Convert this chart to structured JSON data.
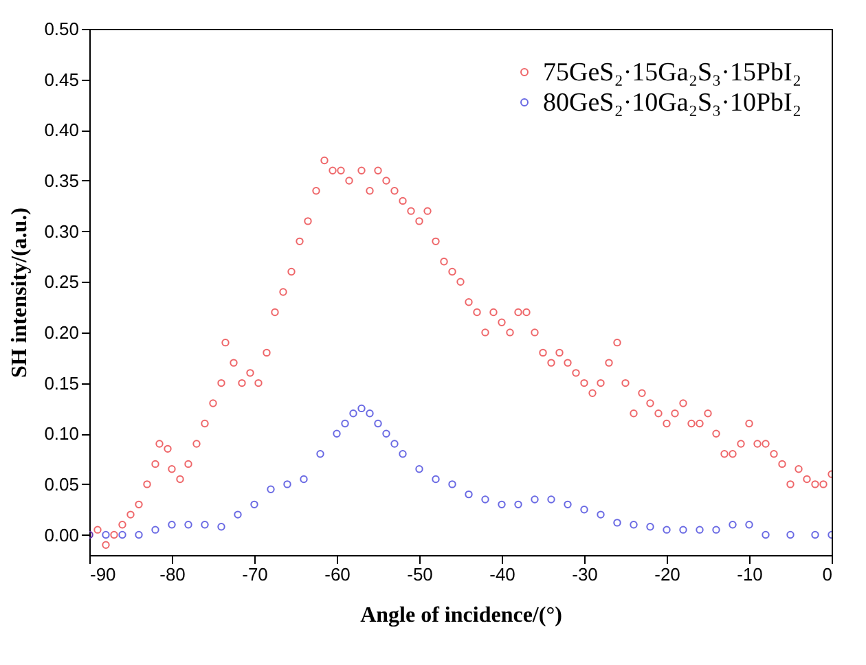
{
  "chart_data": {
    "type": "scatter",
    "xlabel": "Angle of incidence/(°)",
    "ylabel": "SH intensity/(a.u.)",
    "xlim": [
      -90,
      0
    ],
    "xticks": [
      -90,
      -80,
      -70,
      -60,
      -50,
      -40,
      -30,
      -20,
      -10,
      0
    ],
    "ylim": [
      -0.02,
      0.5
    ],
    "yticks": [
      {
        "value": 0,
        "label": "0.00"
      },
      {
        "value": 0.05,
        "label": "0.05"
      },
      {
        "value": 0.1,
        "label": "0.10"
      },
      {
        "value": 0.15,
        "label": "0.15"
      },
      {
        "value": 0.2,
        "label": "0.20"
      },
      {
        "value": 0.25,
        "label": "0.25"
      },
      {
        "value": 0.3,
        "label": "0.30"
      },
      {
        "value": 0.35,
        "label": "0.35"
      },
      {
        "value": 0.4,
        "label": "0.40"
      },
      {
        "value": 0.45,
        "label": "0.45"
      },
      {
        "value": 0.5,
        "label": "0.50"
      }
    ],
    "grid": false,
    "legend": "top right",
    "marker": "circle",
    "series": [
      {
        "name": "75GeS₂·15Ga₂S₃·15PbI₂",
        "color": "#e8262a",
        "x": [
          -90,
          -89,
          -88,
          -87,
          -86,
          -85,
          -84,
          -83,
          -82,
          -81.5,
          -80.5,
          -80,
          -79,
          -78,
          -77,
          -76,
          -75,
          -74,
          -73.5,
          -72.5,
          -71.5,
          -70.5,
          -69.5,
          -68.5,
          -67.5,
          -66.5,
          -65.5,
          -64.5,
          -63.5,
          -62.5,
          -61.5,
          -60.5,
          -59.5,
          -58.5,
          -57,
          -56,
          -55,
          -54,
          -53,
          -52,
          -51,
          -50,
          -49,
          -48,
          -47,
          -46,
          -45,
          -44,
          -43,
          -42,
          -41,
          -40,
          -39,
          -38,
          -37,
          -36,
          -35,
          -34,
          -33,
          -32,
          -31,
          -30,
          -29,
          -28,
          -27,
          -26,
          -25,
          -24,
          -23,
          -22,
          -21,
          -20,
          -19,
          -18,
          -17,
          -16,
          -15,
          -14,
          -13,
          -12,
          -11,
          -10,
          -9,
          -8,
          -7,
          -6,
          -5,
          -4,
          -3,
          -2,
          -1,
          0
        ],
        "values": [
          0.0,
          0.005,
          -0.01,
          0.0,
          0.01,
          0.02,
          0.03,
          0.05,
          0.07,
          0.09,
          0.085,
          0.065,
          0.055,
          0.07,
          0.09,
          0.11,
          0.13,
          0.15,
          0.19,
          0.17,
          0.15,
          0.16,
          0.15,
          0.18,
          0.22,
          0.24,
          0.26,
          0.29,
          0.31,
          0.34,
          0.37,
          0.36,
          0.36,
          0.35,
          0.36,
          0.34,
          0.36,
          0.35,
          0.34,
          0.33,
          0.32,
          0.31,
          0.32,
          0.29,
          0.27,
          0.26,
          0.25,
          0.23,
          0.22,
          0.2,
          0.22,
          0.21,
          0.2,
          0.22,
          0.22,
          0.2,
          0.18,
          0.17,
          0.18,
          0.17,
          0.16,
          0.15,
          0.14,
          0.15,
          0.17,
          0.19,
          0.15,
          0.12,
          0.14,
          0.13,
          0.12,
          0.11,
          0.12,
          0.13,
          0.11,
          0.11,
          0.12,
          0.1,
          0.08,
          0.08,
          0.09,
          0.11,
          0.09,
          0.09,
          0.08,
          0.07,
          0.05,
          0.065,
          0.055,
          0.05,
          0.05,
          0.06
        ]
      },
      {
        "name": "80GeS₂·10Ga₂S₃·10PbI₂",
        "color": "#2a2ad8",
        "x": [
          -90,
          -88,
          -86,
          -84,
          -82,
          -80,
          -78,
          -76,
          -74,
          -72,
          -70,
          -68,
          -66,
          -64,
          -62,
          -60,
          -59,
          -58,
          -57,
          -56,
          -55,
          -54,
          -53,
          -52,
          -50,
          -48,
          -46,
          -44,
          -42,
          -40,
          -38,
          -36,
          -34,
          -32,
          -30,
          -28,
          -26,
          -24,
          -22,
          -20,
          -18,
          -16,
          -14,
          -12,
          -10,
          -8,
          -5,
          -2,
          0
        ],
        "values": [
          0.0,
          0.0,
          0.0,
          0.0,
          0.005,
          0.01,
          0.01,
          0.01,
          0.008,
          0.02,
          0.03,
          0.045,
          0.05,
          0.055,
          0.08,
          0.1,
          0.11,
          0.12,
          0.125,
          0.12,
          0.11,
          0.1,
          0.09,
          0.08,
          0.065,
          0.055,
          0.05,
          0.04,
          0.035,
          0.03,
          0.03,
          0.035,
          0.035,
          0.03,
          0.025,
          0.02,
          0.012,
          0.01,
          0.008,
          0.005,
          0.005,
          0.005,
          0.005,
          0.01,
          0.01,
          0.0,
          0.0,
          0.0,
          0.0
        ]
      }
    ]
  }
}
